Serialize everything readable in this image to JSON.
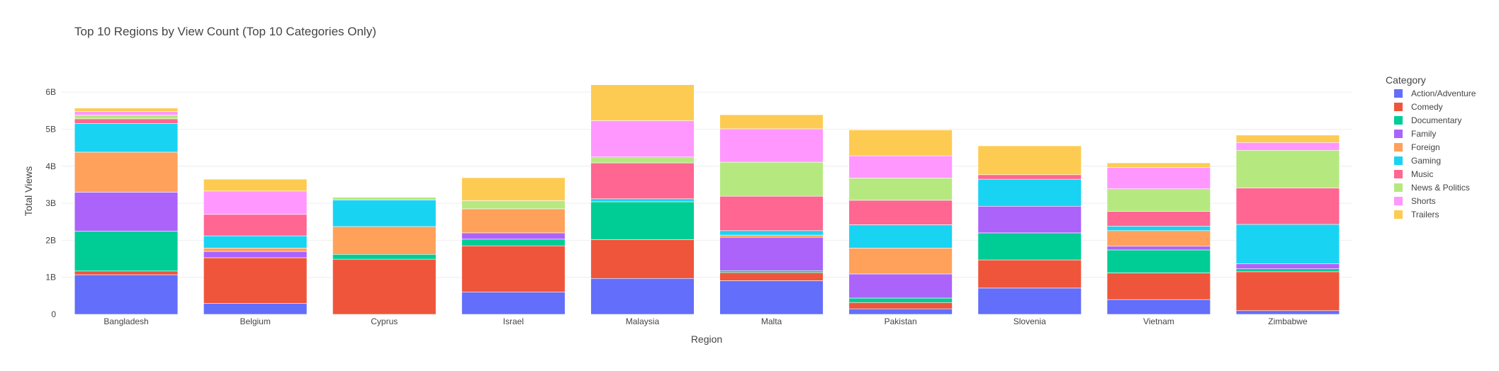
{
  "chart_data": {
    "type": "bar",
    "stacked": true,
    "title": "Top 10 Regions by View Count (Top 10 Categories Only)",
    "xlabel": "Region",
    "ylabel": "Total Views",
    "ylim": [
      0,
      6.5
    ],
    "yticks": [
      {
        "value": 0,
        "label": "0"
      },
      {
        "value": 1,
        "label": "1B"
      },
      {
        "value": 2,
        "label": "2B"
      },
      {
        "value": 3,
        "label": "3B"
      },
      {
        "value": 4,
        "label": "4B"
      },
      {
        "value": 5,
        "label": "5B"
      },
      {
        "value": 6,
        "label": "6B"
      }
    ],
    "grid": true,
    "legend_title": "Category",
    "legend_position": "right",
    "categories": [
      "Bangladesh",
      "Belgium",
      "Cyprus",
      "Israel",
      "Malaysia",
      "Malta",
      "Pakistan",
      "Slovenia",
      "Vietnam",
      "Zimbabwe"
    ],
    "series": [
      {
        "name": "Action/Adventure",
        "color": "#636efa",
        "values": [
          1.07,
          0.3,
          0.0,
          0.6,
          0.97,
          0.91,
          0.15,
          0.71,
          0.4,
          0.1
        ]
      },
      {
        "name": "Comedy",
        "color": "#ef553b",
        "values": [
          0.1,
          1.23,
          1.49,
          1.25,
          1.05,
          0.22,
          0.17,
          0.76,
          0.72,
          1.05
        ]
      },
      {
        "name": "Documentary",
        "color": "#00cc96",
        "values": [
          1.08,
          0.0,
          0.13,
          0.18,
          1.02,
          0.05,
          0.12,
          0.73,
          0.62,
          0.08
        ]
      },
      {
        "name": "Family",
        "color": "#ab63fa",
        "values": [
          1.05,
          0.17,
          0.0,
          0.17,
          0.0,
          0.9,
          0.65,
          0.72,
          0.1,
          0.14
        ]
      },
      {
        "name": "Foreign",
        "color": "#ffa15a",
        "values": [
          1.08,
          0.09,
          0.75,
          0.65,
          0.0,
          0.06,
          0.7,
          0.0,
          0.42,
          0.0
        ]
      },
      {
        "name": "Gaming",
        "color": "#19d3f3",
        "values": [
          0.77,
          0.33,
          0.72,
          0.0,
          0.08,
          0.12,
          0.63,
          0.73,
          0.12,
          1.06
        ]
      },
      {
        "name": "Music",
        "color": "#ff6692",
        "values": [
          0.13,
          0.58,
          0.0,
          0.0,
          0.97,
          0.93,
          0.66,
          0.12,
          0.4,
          0.98
        ]
      },
      {
        "name": "News & Politics",
        "color": "#b6e880",
        "values": [
          0.1,
          0.0,
          0.07,
          0.22,
          0.16,
          0.92,
          0.6,
          0.0,
          0.61,
          1.02
        ]
      },
      {
        "name": "Shorts",
        "color": "#ff97ff",
        "values": [
          0.1,
          0.63,
          0.0,
          0.0,
          0.98,
          0.9,
          0.6,
          0.0,
          0.58,
          0.21
        ]
      },
      {
        "name": "Trailers",
        "color": "#fecb52",
        "values": [
          0.09,
          0.32,
          0.0,
          0.62,
          0.97,
          0.38,
          0.7,
          0.78,
          0.12,
          0.2
        ]
      }
    ]
  }
}
